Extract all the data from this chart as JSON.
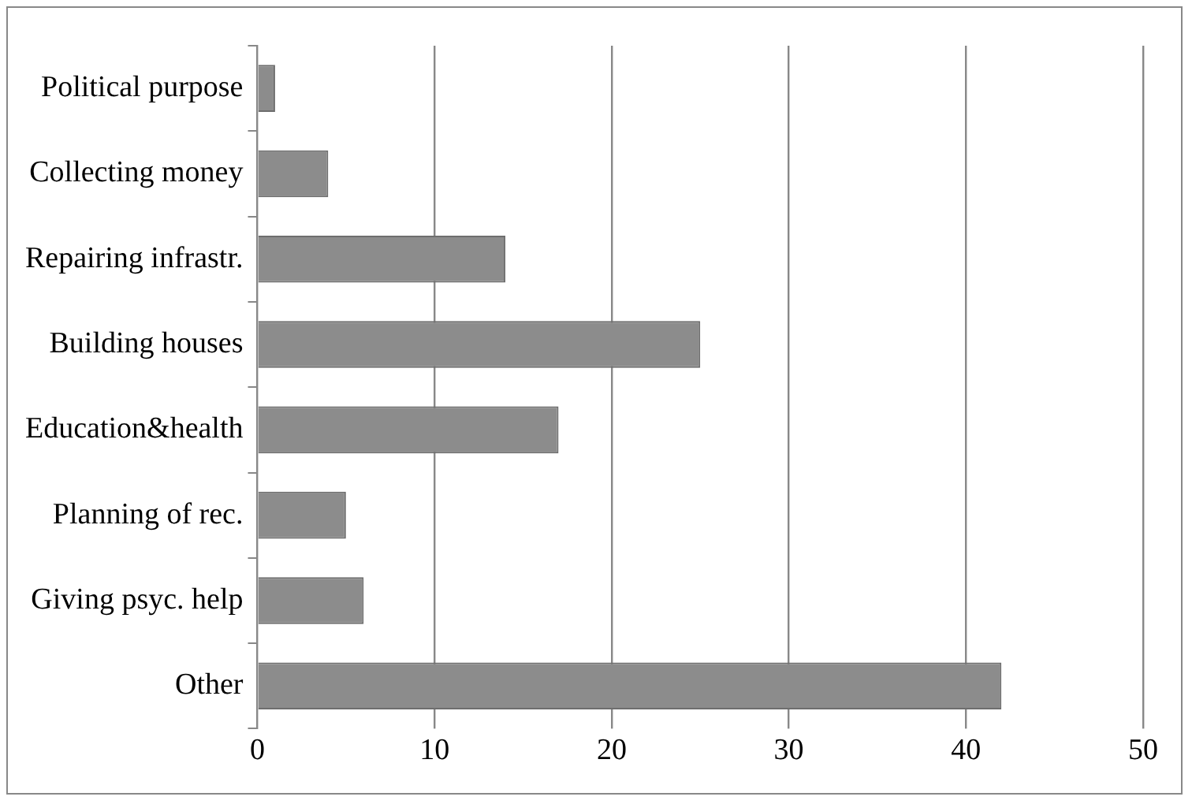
{
  "chart_data": {
    "type": "bar",
    "orientation": "horizontal",
    "categories": [
      "Political purpose",
      "Collecting money",
      "Repairing infrastr.",
      "Building houses",
      "Education&health",
      "Planning of rec.",
      "Giving psyc. help",
      "Other"
    ],
    "values": [
      1,
      4,
      14,
      25,
      17,
      5,
      6,
      42
    ],
    "color": "#8c8c8c",
    "xlim": [
      0,
      50
    ],
    "xticks": [
      0,
      10,
      20,
      30,
      40,
      50
    ],
    "grid": "x",
    "legend": false
  }
}
